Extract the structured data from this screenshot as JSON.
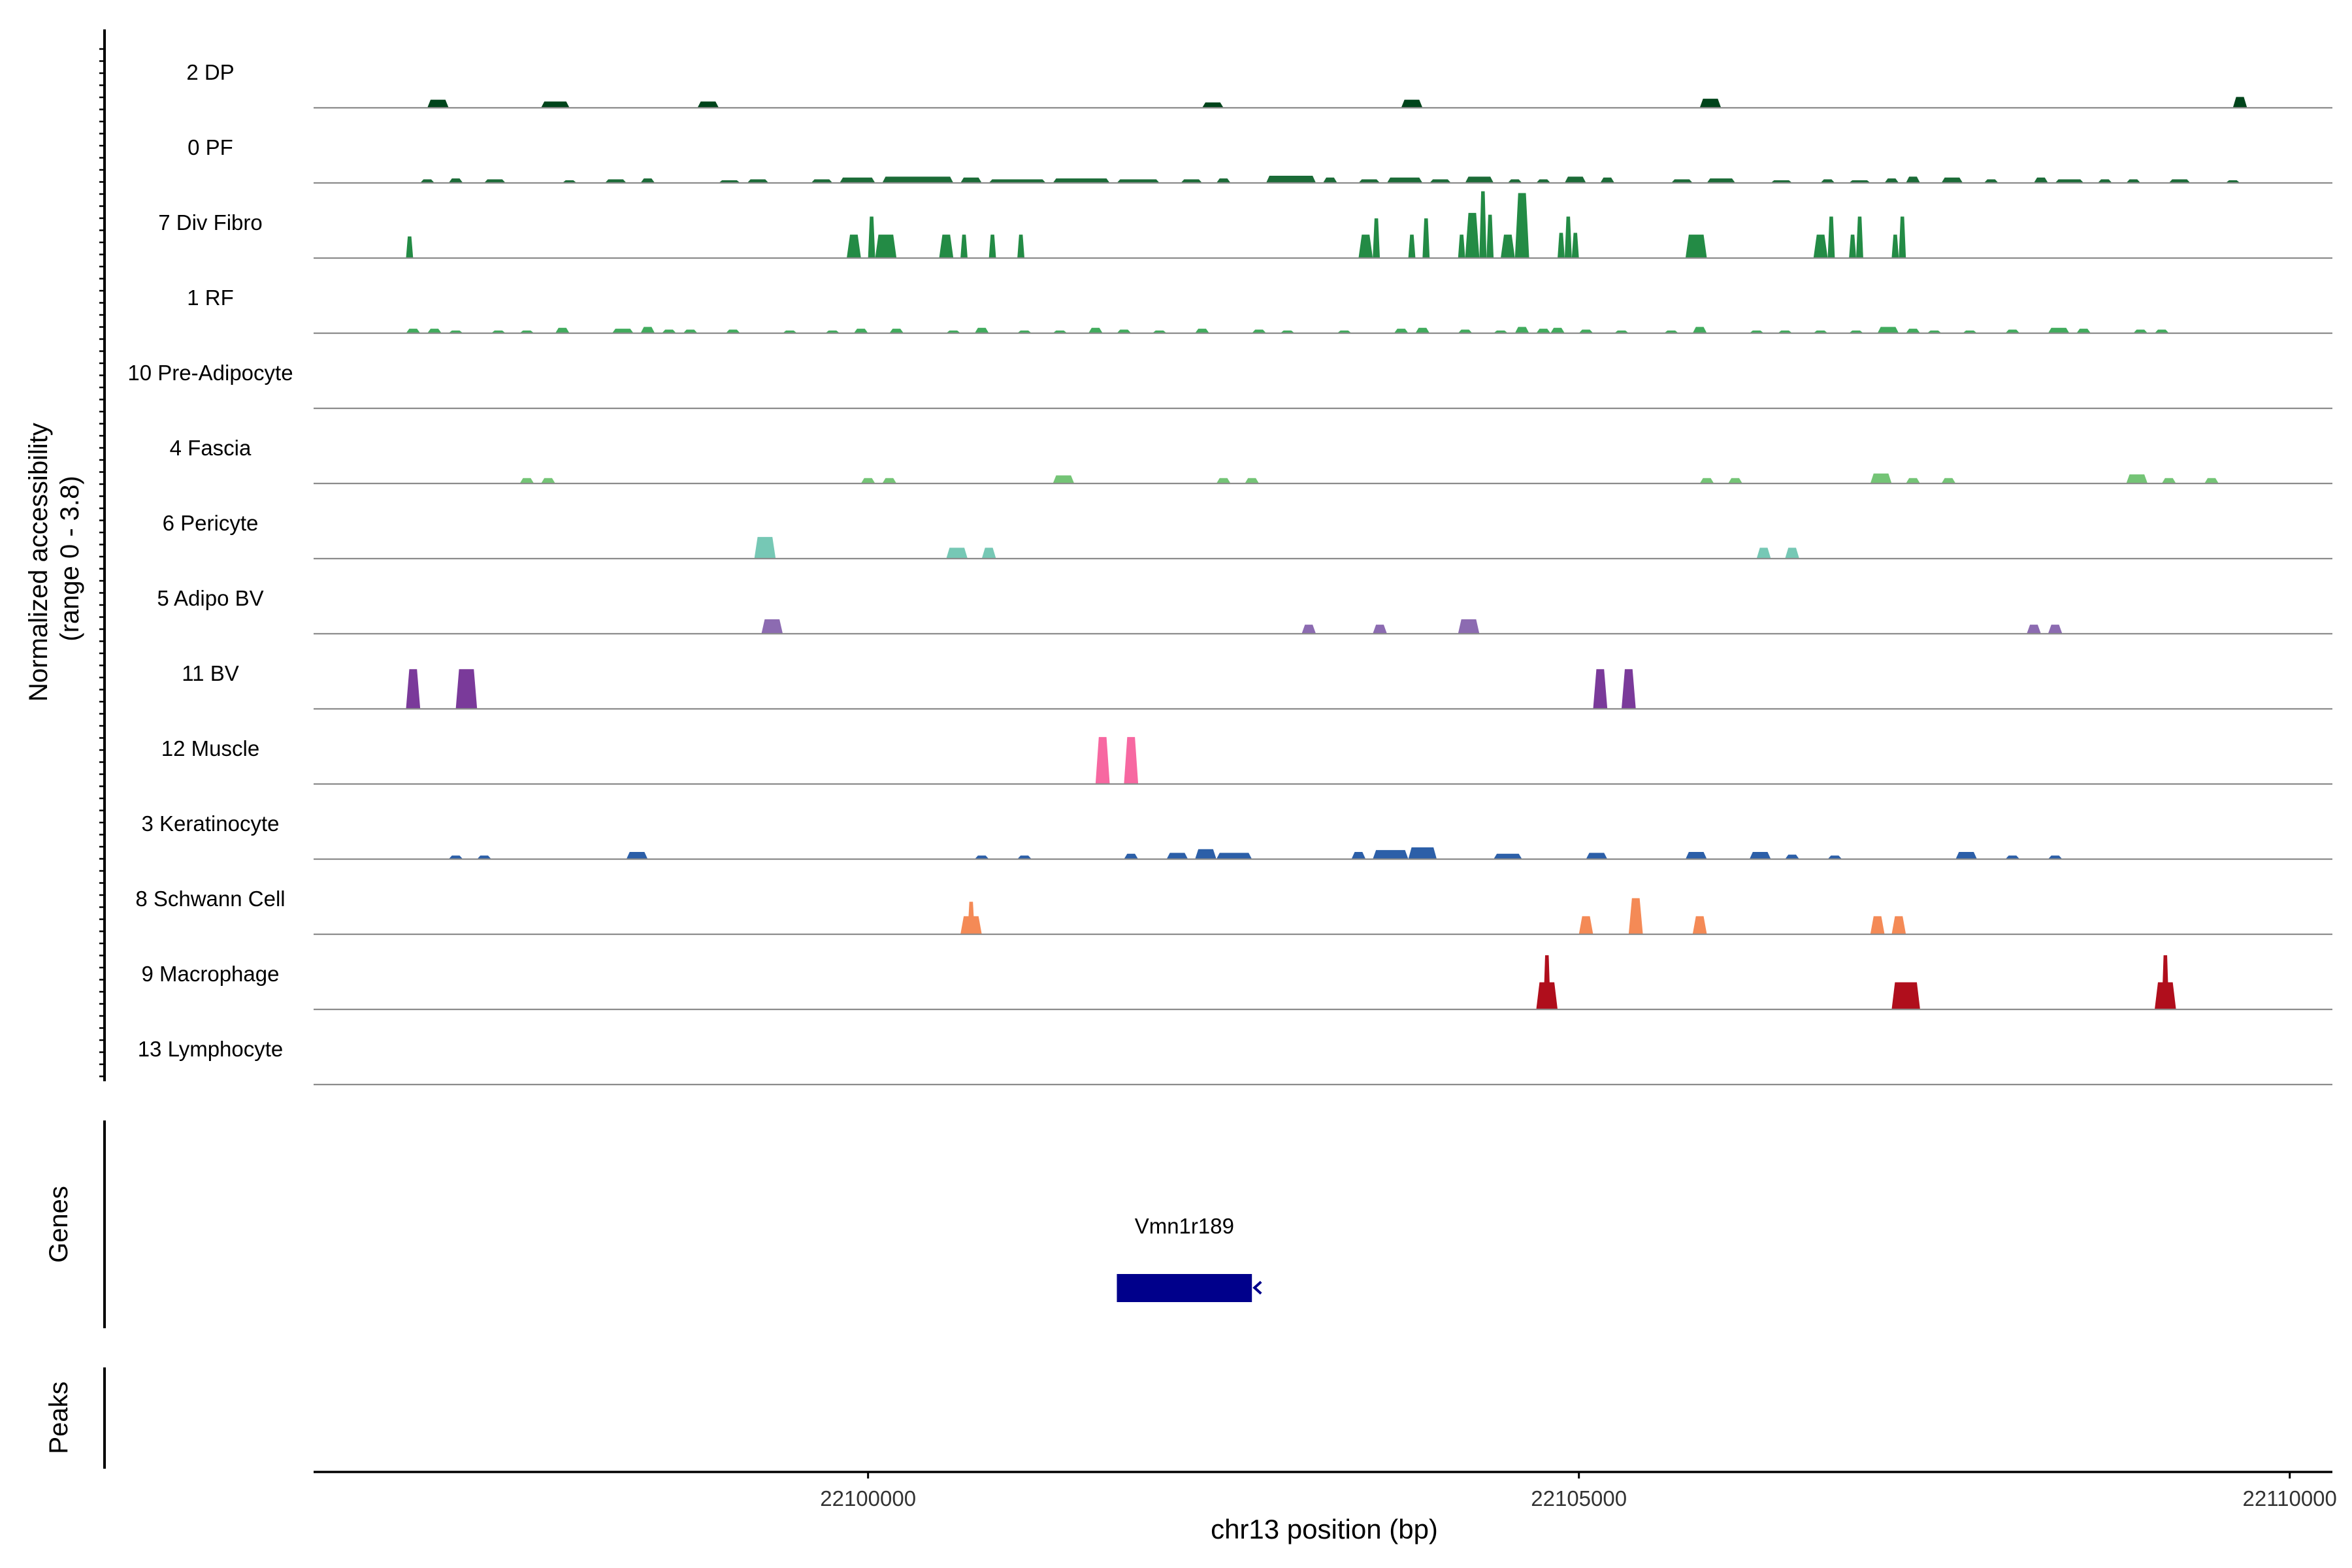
{
  "chart_data": {
    "type": "area",
    "title": "",
    "ylabel": "Normalized accessibility\n(range 0 - 3.8)",
    "xlabel": "chr13 position (bp)",
    "xlim": [
      22096100,
      22110300
    ],
    "ylim": [
      0,
      3.8
    ],
    "xticks": [
      22100000,
      22105000,
      22110000
    ],
    "gene_track_label": "Genes",
    "peak_track_label": "Peaks",
    "gene": {
      "name": "Vmn1r189",
      "start": 22101750,
      "end": 22102700,
      "strand": "-",
      "color": "#00008B"
    },
    "tracks": [
      {
        "name": "2 DP",
        "color": "#00441B",
        "peaks": [
          [
            22096900,
            22097050,
            0.45
          ],
          [
            22097700,
            22097900,
            0.35
          ],
          [
            22098800,
            22098950,
            0.35
          ],
          [
            22102350,
            22102500,
            0.3
          ],
          [
            22103750,
            22103900,
            0.45
          ],
          [
            22105850,
            22106000,
            0.5
          ],
          [
            22109600,
            22109700,
            0.6
          ]
        ]
      },
      {
        "name": "0 PF",
        "color": "#1B6B37",
        "peaks": [
          [
            22096850,
            22096950,
            0.2
          ],
          [
            22097050,
            22097150,
            0.25
          ],
          [
            22097300,
            22097450,
            0.2
          ],
          [
            22097850,
            22097950,
            0.15
          ],
          [
            22098150,
            22098300,
            0.2
          ],
          [
            22098400,
            22098500,
            0.25
          ],
          [
            22098950,
            22099100,
            0.15
          ],
          [
            22099150,
            22099300,
            0.2
          ],
          [
            22099600,
            22099750,
            0.2
          ],
          [
            22099800,
            22100050,
            0.3
          ],
          [
            22100100,
            22100600,
            0.35
          ],
          [
            22100650,
            22100800,
            0.3
          ],
          [
            22100850,
            22101250,
            0.2
          ],
          [
            22101300,
            22101700,
            0.25
          ],
          [
            22101750,
            22102050,
            0.2
          ],
          [
            22102200,
            22102350,
            0.2
          ],
          [
            22102450,
            22102550,
            0.25
          ],
          [
            22102800,
            22103150,
            0.4
          ],
          [
            22103200,
            22103300,
            0.3
          ],
          [
            22103450,
            22103600,
            0.2
          ],
          [
            22103650,
            22103900,
            0.3
          ],
          [
            22103950,
            22104100,
            0.2
          ],
          [
            22104200,
            22104400,
            0.35
          ],
          [
            22104500,
            22104600,
            0.2
          ],
          [
            22104700,
            22104800,
            0.2
          ],
          [
            22104900,
            22105050,
            0.35
          ],
          [
            22105150,
            22105250,
            0.3
          ],
          [
            22105650,
            22105800,
            0.2
          ],
          [
            22105900,
            22106100,
            0.25
          ],
          [
            22106350,
            22106500,
            0.15
          ],
          [
            22106700,
            22106800,
            0.2
          ],
          [
            22106900,
            22107050,
            0.15
          ],
          [
            22107150,
            22107250,
            0.25
          ],
          [
            22107300,
            22107400,
            0.35
          ],
          [
            22107550,
            22107700,
            0.3
          ],
          [
            22107850,
            22107950,
            0.2
          ],
          [
            22108200,
            22108300,
            0.3
          ],
          [
            22108350,
            22108550,
            0.2
          ],
          [
            22108650,
            22108750,
            0.2
          ],
          [
            22108850,
            22108950,
            0.2
          ],
          [
            22109150,
            22109300,
            0.2
          ],
          [
            22109550,
            22109650,
            0.15
          ]
        ]
      },
      {
        "name": "7 Div Fibro",
        "color": "#238B45",
        "peaks": [
          [
            22096750,
            22096800,
            1.2
          ],
          [
            22099850,
            22099950,
            1.3
          ],
          [
            22100000,
            22100050,
            2.3
          ],
          [
            22100050,
            22100200,
            1.3
          ],
          [
            22100500,
            22100600,
            1.3
          ],
          [
            22100650,
            22100700,
            1.3
          ],
          [
            22100850,
            22100900,
            1.3
          ],
          [
            22101050,
            22101100,
            1.3
          ],
          [
            22103450,
            22103550,
            1.3
          ],
          [
            22103550,
            22103600,
            2.2
          ],
          [
            22103800,
            22103850,
            1.3
          ],
          [
            22103900,
            22103950,
            2.2
          ],
          [
            22104150,
            22104200,
            1.3
          ],
          [
            22104200,
            22104300,
            2.5
          ],
          [
            22104300,
            22104350,
            3.7
          ],
          [
            22104350,
            22104400,
            2.4
          ],
          [
            22104450,
            22104550,
            1.3
          ],
          [
            22104550,
            22104650,
            3.6
          ],
          [
            22104850,
            22104900,
            1.4
          ],
          [
            22104900,
            22104950,
            2.3
          ],
          [
            22104950,
            22105000,
            1.4
          ],
          [
            22105750,
            22105900,
            1.3
          ],
          [
            22106650,
            22106750,
            1.3
          ],
          [
            22106750,
            22106800,
            2.3
          ],
          [
            22106900,
            22106950,
            1.3
          ],
          [
            22106950,
            22107000,
            2.3
          ],
          [
            22107200,
            22107250,
            1.3
          ],
          [
            22107250,
            22107300,
            2.3
          ]
        ]
      },
      {
        "name": "1 RF",
        "color": "#41AB5D",
        "peaks": [
          [
            22096750,
            22096850,
            0.25
          ],
          [
            22096900,
            22097000,
            0.25
          ],
          [
            22097050,
            22097150,
            0.15
          ],
          [
            22097350,
            22097450,
            0.15
          ],
          [
            22097550,
            22097650,
            0.15
          ],
          [
            22097800,
            22097900,
            0.3
          ],
          [
            22098200,
            22098350,
            0.25
          ],
          [
            22098400,
            22098500,
            0.35
          ],
          [
            22098550,
            22098650,
            0.2
          ],
          [
            22098700,
            22098800,
            0.2
          ],
          [
            22099000,
            22099100,
            0.2
          ],
          [
            22099400,
            22099500,
            0.15
          ],
          [
            22099700,
            22099800,
            0.15
          ],
          [
            22099900,
            22100000,
            0.25
          ],
          [
            22100150,
            22100250,
            0.25
          ],
          [
            22100550,
            22100650,
            0.15
          ],
          [
            22100750,
            22100850,
            0.3
          ],
          [
            22101050,
            22101150,
            0.15
          ],
          [
            22101300,
            22101400,
            0.15
          ],
          [
            22101550,
            22101650,
            0.3
          ],
          [
            22101750,
            22101850,
            0.2
          ],
          [
            22102000,
            22102100,
            0.15
          ],
          [
            22102300,
            22102400,
            0.25
          ],
          [
            22102700,
            22102800,
            0.2
          ],
          [
            22102900,
            22103000,
            0.15
          ],
          [
            22103300,
            22103400,
            0.15
          ],
          [
            22103700,
            22103800,
            0.25
          ],
          [
            22103850,
            22103950,
            0.3
          ],
          [
            22104150,
            22104250,
            0.2
          ],
          [
            22104400,
            22104500,
            0.15
          ],
          [
            22104550,
            22104650,
            0.35
          ],
          [
            22104700,
            22104800,
            0.25
          ],
          [
            22104800,
            22104900,
            0.3
          ],
          [
            22105000,
            22105100,
            0.2
          ],
          [
            22105250,
            22105350,
            0.15
          ],
          [
            22105600,
            22105700,
            0.15
          ],
          [
            22105800,
            22105900,
            0.35
          ],
          [
            22106200,
            22106300,
            0.15
          ],
          [
            22106400,
            22106500,
            0.15
          ],
          [
            22106650,
            22106750,
            0.15
          ],
          [
            22106900,
            22107000,
            0.15
          ],
          [
            22107100,
            22107250,
            0.35
          ],
          [
            22107300,
            22107400,
            0.25
          ],
          [
            22107450,
            22107550,
            0.15
          ],
          [
            22107700,
            22107800,
            0.15
          ],
          [
            22108000,
            22108100,
            0.2
          ],
          [
            22108300,
            22108450,
            0.3
          ],
          [
            22108500,
            22108600,
            0.25
          ],
          [
            22108900,
            22109000,
            0.2
          ],
          [
            22109050,
            22109150,
            0.2
          ]
        ]
      },
      {
        "name": "10 Pre-Adipocyte",
        "color": "#74C476",
        "peaks": []
      },
      {
        "name": "4 Fascia",
        "color": "#74C476",
        "peaks": [
          [
            22097550,
            22097650,
            0.3
          ],
          [
            22097700,
            22097800,
            0.3
          ],
          [
            22099950,
            22100050,
            0.3
          ],
          [
            22100100,
            22100200,
            0.3
          ],
          [
            22101300,
            22101450,
            0.45
          ],
          [
            22102450,
            22102550,
            0.3
          ],
          [
            22102650,
            22102750,
            0.3
          ],
          [
            22105850,
            22105950,
            0.3
          ],
          [
            22106050,
            22106150,
            0.3
          ],
          [
            22107050,
            22107200,
            0.55
          ],
          [
            22107300,
            22107400,
            0.3
          ],
          [
            22107550,
            22107650,
            0.3
          ],
          [
            22108850,
            22109000,
            0.5
          ],
          [
            22109100,
            22109200,
            0.3
          ],
          [
            22109400,
            22109500,
            0.3
          ]
        ]
      },
      {
        "name": "6 Pericyte",
        "color": "#76C8B5",
        "peaks": [
          [
            22099200,
            22099350,
            1.2
          ],
          [
            22100550,
            22100700,
            0.6
          ],
          [
            22100800,
            22100900,
            0.6
          ],
          [
            22106250,
            22106350,
            0.6
          ],
          [
            22106450,
            22106550,
            0.6
          ]
        ]
      },
      {
        "name": "5 Adipo BV",
        "color": "#8C6BB1",
        "peaks": [
          [
            22099250,
            22099400,
            0.8
          ],
          [
            22103050,
            22103150,
            0.5
          ],
          [
            22103550,
            22103650,
            0.5
          ],
          [
            22104150,
            22104300,
            0.8
          ],
          [
            22108150,
            22108250,
            0.5
          ],
          [
            22108300,
            22108400,
            0.5
          ]
        ]
      },
      {
        "name": "11 BV",
        "color": "#7A3A9A",
        "peaks": [
          [
            22096750,
            22096850,
            2.2
          ],
          [
            22097100,
            22097250,
            2.2
          ],
          [
            22105100,
            22105200,
            2.2
          ],
          [
            22105300,
            22105400,
            2.2
          ]
        ]
      },
      {
        "name": "12 Muscle",
        "color": "#F768A1",
        "peaks": [
          [
            22101600,
            22101700,
            2.6
          ],
          [
            22101800,
            22101900,
            2.6
          ]
        ]
      },
      {
        "name": "3 Keratinocyte",
        "color": "#2C5FA8",
        "peaks": [
          [
            22097050,
            22097150,
            0.2
          ],
          [
            22097250,
            22097350,
            0.2
          ],
          [
            22098300,
            22098450,
            0.4
          ],
          [
            22100750,
            22100850,
            0.2
          ],
          [
            22101050,
            22101150,
            0.2
          ],
          [
            22101800,
            22101900,
            0.3
          ],
          [
            22102100,
            22102250,
            0.35
          ],
          [
            22102300,
            22102450,
            0.55
          ],
          [
            22102450,
            22102700,
            0.35
          ],
          [
            22103400,
            22103500,
            0.4
          ],
          [
            22103550,
            22103800,
            0.5
          ],
          [
            22103800,
            22104000,
            0.65
          ],
          [
            22104400,
            22104600,
            0.3
          ],
          [
            22105050,
            22105200,
            0.35
          ],
          [
            22105750,
            22105900,
            0.4
          ],
          [
            22106200,
            22106350,
            0.4
          ],
          [
            22106450,
            22106550,
            0.25
          ],
          [
            22106750,
            22106850,
            0.2
          ],
          [
            22107650,
            22107800,
            0.4
          ],
          [
            22108000,
            22108100,
            0.2
          ],
          [
            22108300,
            22108400,
            0.2
          ]
        ]
      },
      {
        "name": "8 Schwann Cell",
        "color": "#F48A56",
        "peaks": [
          [
            22100650,
            22100800,
            1.0
          ],
          [
            22100700,
            22100750,
            1.8
          ],
          [
            22105000,
            22105100,
            1.0
          ],
          [
            22105350,
            22105450,
            2.0
          ],
          [
            22105800,
            22105900,
            1.0
          ],
          [
            22107050,
            22107150,
            1.0
          ],
          [
            22107200,
            22107300,
            1.0
          ]
        ]
      },
      {
        "name": "9 Macrophage",
        "color": "#B00E1C",
        "peaks": [
          [
            22104700,
            22104850,
            1.5
          ],
          [
            22104750,
            22104800,
            3.0
          ],
          [
            22107200,
            22107400,
            1.5
          ],
          [
            22109050,
            22109200,
            1.5
          ],
          [
            22109100,
            22109150,
            3.0
          ]
        ]
      },
      {
        "name": "13 Lymphocyte",
        "color": "#BD0026",
        "peaks": []
      }
    ]
  }
}
